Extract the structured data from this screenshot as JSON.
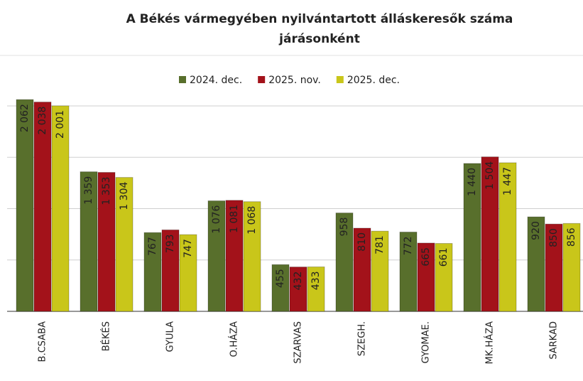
{
  "chart_data": {
    "type": "bar",
    "title": [
      "A Békés vármegyében nyilvántartott álláskeresők száma",
      "járásonként"
    ],
    "categories": [
      "B.CSABA",
      "BÉKÉS",
      "GYULA",
      "O.HÁZA",
      "SZARVAS",
      "SZEGH.",
      "GYOMAE.",
      "MK.HÁZA",
      "SARKAD"
    ],
    "series": [
      {
        "name": "2024. dec.",
        "color": "#586f2c",
        "label_color": "#ffffff",
        "values": [
          2062,
          1359,
          767,
          1076,
          455,
          958,
          772,
          1440,
          920
        ],
        "value_labels": [
          "2 062",
          "1 359",
          "767",
          "1 076",
          "455",
          "958",
          "772",
          "1 440",
          "920"
        ]
      },
      {
        "name": "2025. nov.",
        "color": "#a3121a",
        "label_color": "#ffffff",
        "values": [
          2038,
          1353,
          793,
          1081,
          432,
          810,
          665,
          1504,
          850
        ],
        "value_labels": [
          "2 038",
          "1 353",
          "793",
          "1 081",
          "432",
          "810",
          "665",
          "1 504",
          "850"
        ]
      },
      {
        "name": "2025. dec.",
        "color": "#c9c61a",
        "label_color": "#1a1a1a",
        "values": [
          2001,
          1304,
          747,
          1068,
          433,
          781,
          661,
          1447,
          856
        ],
        "value_labels": [
          "2 001",
          "1 304",
          "747",
          "1 068",
          "433",
          "781",
          "661",
          "1 447",
          "856"
        ]
      }
    ],
    "ylim": [
      0,
      2100
    ],
    "gridlines": [
      0,
      500,
      1000,
      1500,
      2000
    ],
    "legend": "top"
  }
}
